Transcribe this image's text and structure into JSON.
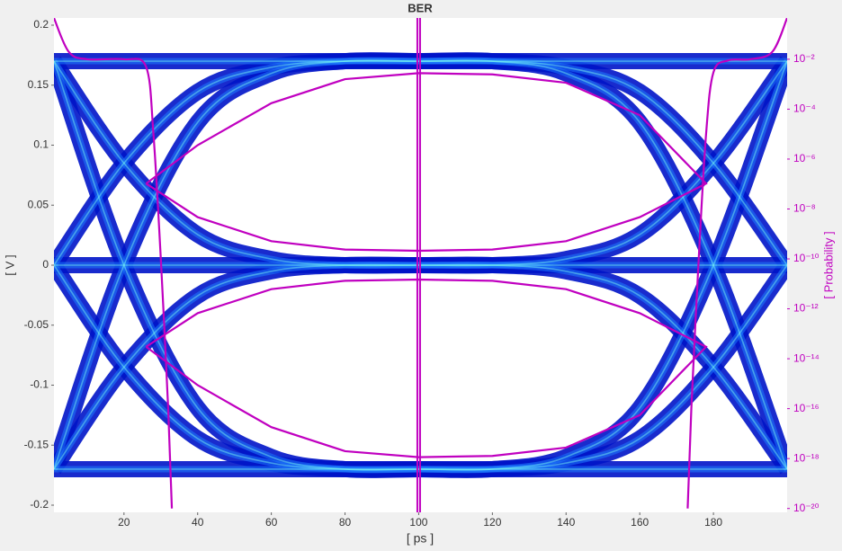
{
  "chart_data": {
    "type": "eye",
    "title": "BER",
    "x_label": "[ ps ]",
    "y_label": "[ V ]",
    "y2_label": "[ Probability ]",
    "xlim": [
      1,
      200
    ],
    "ylim": [
      -0.206,
      0.206
    ],
    "y2lim": [
      7e-21,
      0.45
    ],
    "y2_log": true,
    "xticks": [
      20,
      40,
      60,
      80,
      100,
      120,
      140,
      160,
      180
    ],
    "yticks": [
      0.2,
      0.15,
      0.1,
      0.05,
      0,
      -0.05,
      -0.1,
      -0.15,
      -0.2
    ],
    "y2ticks": [
      {
        "value": 0.01,
        "label": "10⁻²"
      },
      {
        "value": 0.0001,
        "label": "10⁻⁴"
      },
      {
        "value": 1e-06,
        "label": "10⁻⁶"
      },
      {
        "value": 1e-08,
        "label": "10⁻⁸"
      },
      {
        "value": 1e-10,
        "label": "10⁻¹⁰"
      },
      {
        "value": 1e-12,
        "label": "10⁻¹²"
      },
      {
        "value": 1e-14,
        "label": "10⁻¹⁴"
      },
      {
        "value": 1e-16,
        "label": "10⁻¹⁶"
      },
      {
        "value": 1e-18,
        "label": "10⁻¹⁸"
      },
      {
        "value": 1e-20,
        "label": "10⁻²⁰"
      }
    ],
    "trace_color": "#0014c8",
    "trace_x": [
      1,
      20,
      40,
      60,
      80,
      100,
      120,
      140,
      160,
      180,
      200
    ],
    "traces": [
      {
        "values": [
          0.17,
          0.17,
          0.17,
          0.17,
          0.17,
          0.17,
          0.17,
          0.17,
          0.17,
          0.17,
          0.17
        ]
      },
      {
        "values": [
          0,
          0.085,
          0.1445,
          0.1649,
          0.17,
          0.17,
          0.17,
          0.1649,
          0.1445,
          0.085,
          0
        ]
      },
      {
        "values": [
          -0.17,
          0,
          0.119,
          0.1598,
          0.17,
          0.17,
          0.17,
          0.1598,
          0.119,
          0,
          -0.17
        ]
      },
      {
        "values": [
          0.17,
          0.085,
          0.0255,
          0.0051,
          0,
          0,
          0,
          0.0051,
          0.0255,
          0.085,
          0.17
        ]
      },
      {
        "values": [
          0,
          0,
          0,
          0,
          0,
          0,
          0,
          0,
          0,
          0,
          0
        ]
      },
      {
        "values": [
          -0.17,
          -0.085,
          -0.0255,
          -0.0051,
          0,
          0,
          0,
          -0.0051,
          -0.0255,
          -0.085,
          -0.17
        ]
      },
      {
        "values": [
          0.17,
          0,
          -0.119,
          -0.1598,
          -0.17,
          -0.17,
          -0.17,
          -0.1598,
          -0.119,
          0,
          0.17
        ]
      },
      {
        "values": [
          0,
          -0.085,
          -0.1445,
          -0.1649,
          -0.17,
          -0.17,
          -0.17,
          -0.1649,
          -0.1445,
          -0.085,
          0
        ]
      },
      {
        "values": [
          -0.17,
          -0.17,
          -0.17,
          -0.17,
          -0.17,
          -0.17,
          -0.17,
          -0.17,
          -0.17,
          -0.17,
          -0.17
        ]
      }
    ],
    "ber_color": "#c000c0",
    "contours": [
      {
        "x": [
          26,
          40,
          60,
          80,
          100,
          120,
          140,
          160,
          178,
          160,
          140,
          120,
          100,
          80,
          60,
          40,
          26
        ],
        "values": [
          0.068,
          0.1,
          0.135,
          0.155,
          0.16,
          0.159,
          0.152,
          0.125,
          0.068,
          0.04,
          0.02,
          0.013,
          0.012,
          0.013,
          0.02,
          0.04,
          0.068
        ]
      },
      {
        "x": [
          26,
          40,
          60,
          80,
          100,
          120,
          140,
          160,
          178,
          160,
          140,
          120,
          100,
          80,
          60,
          40,
          26
        ],
        "values": [
          -0.068,
          -0.1,
          -0.135,
          -0.155,
          -0.16,
          -0.159,
          -0.152,
          -0.125,
          -0.068,
          -0.04,
          -0.02,
          -0.013,
          -0.012,
          -0.013,
          -0.02,
          -0.04,
          -0.068
        ]
      }
    ],
    "bathtubs": [
      {
        "axis": "y2",
        "x": [
          1,
          5,
          10,
          20,
          26,
          28,
          30,
          32,
          33
        ],
        "values": [
          0.45,
          0.02,
          0.01,
          0.01,
          0.005,
          1e-05,
          1e-10,
          1e-16,
          1e-20
        ]
      },
      {
        "axis": "y2",
        "x": [
          173,
          174,
          176,
          178,
          180,
          184,
          190,
          196,
          200
        ],
        "values": [
          1e-20,
          1e-16,
          1e-10,
          1e-05,
          0.003,
          0.009,
          0.01,
          0.02,
          0.45
        ]
      }
    ],
    "sampling_x": 100
  }
}
